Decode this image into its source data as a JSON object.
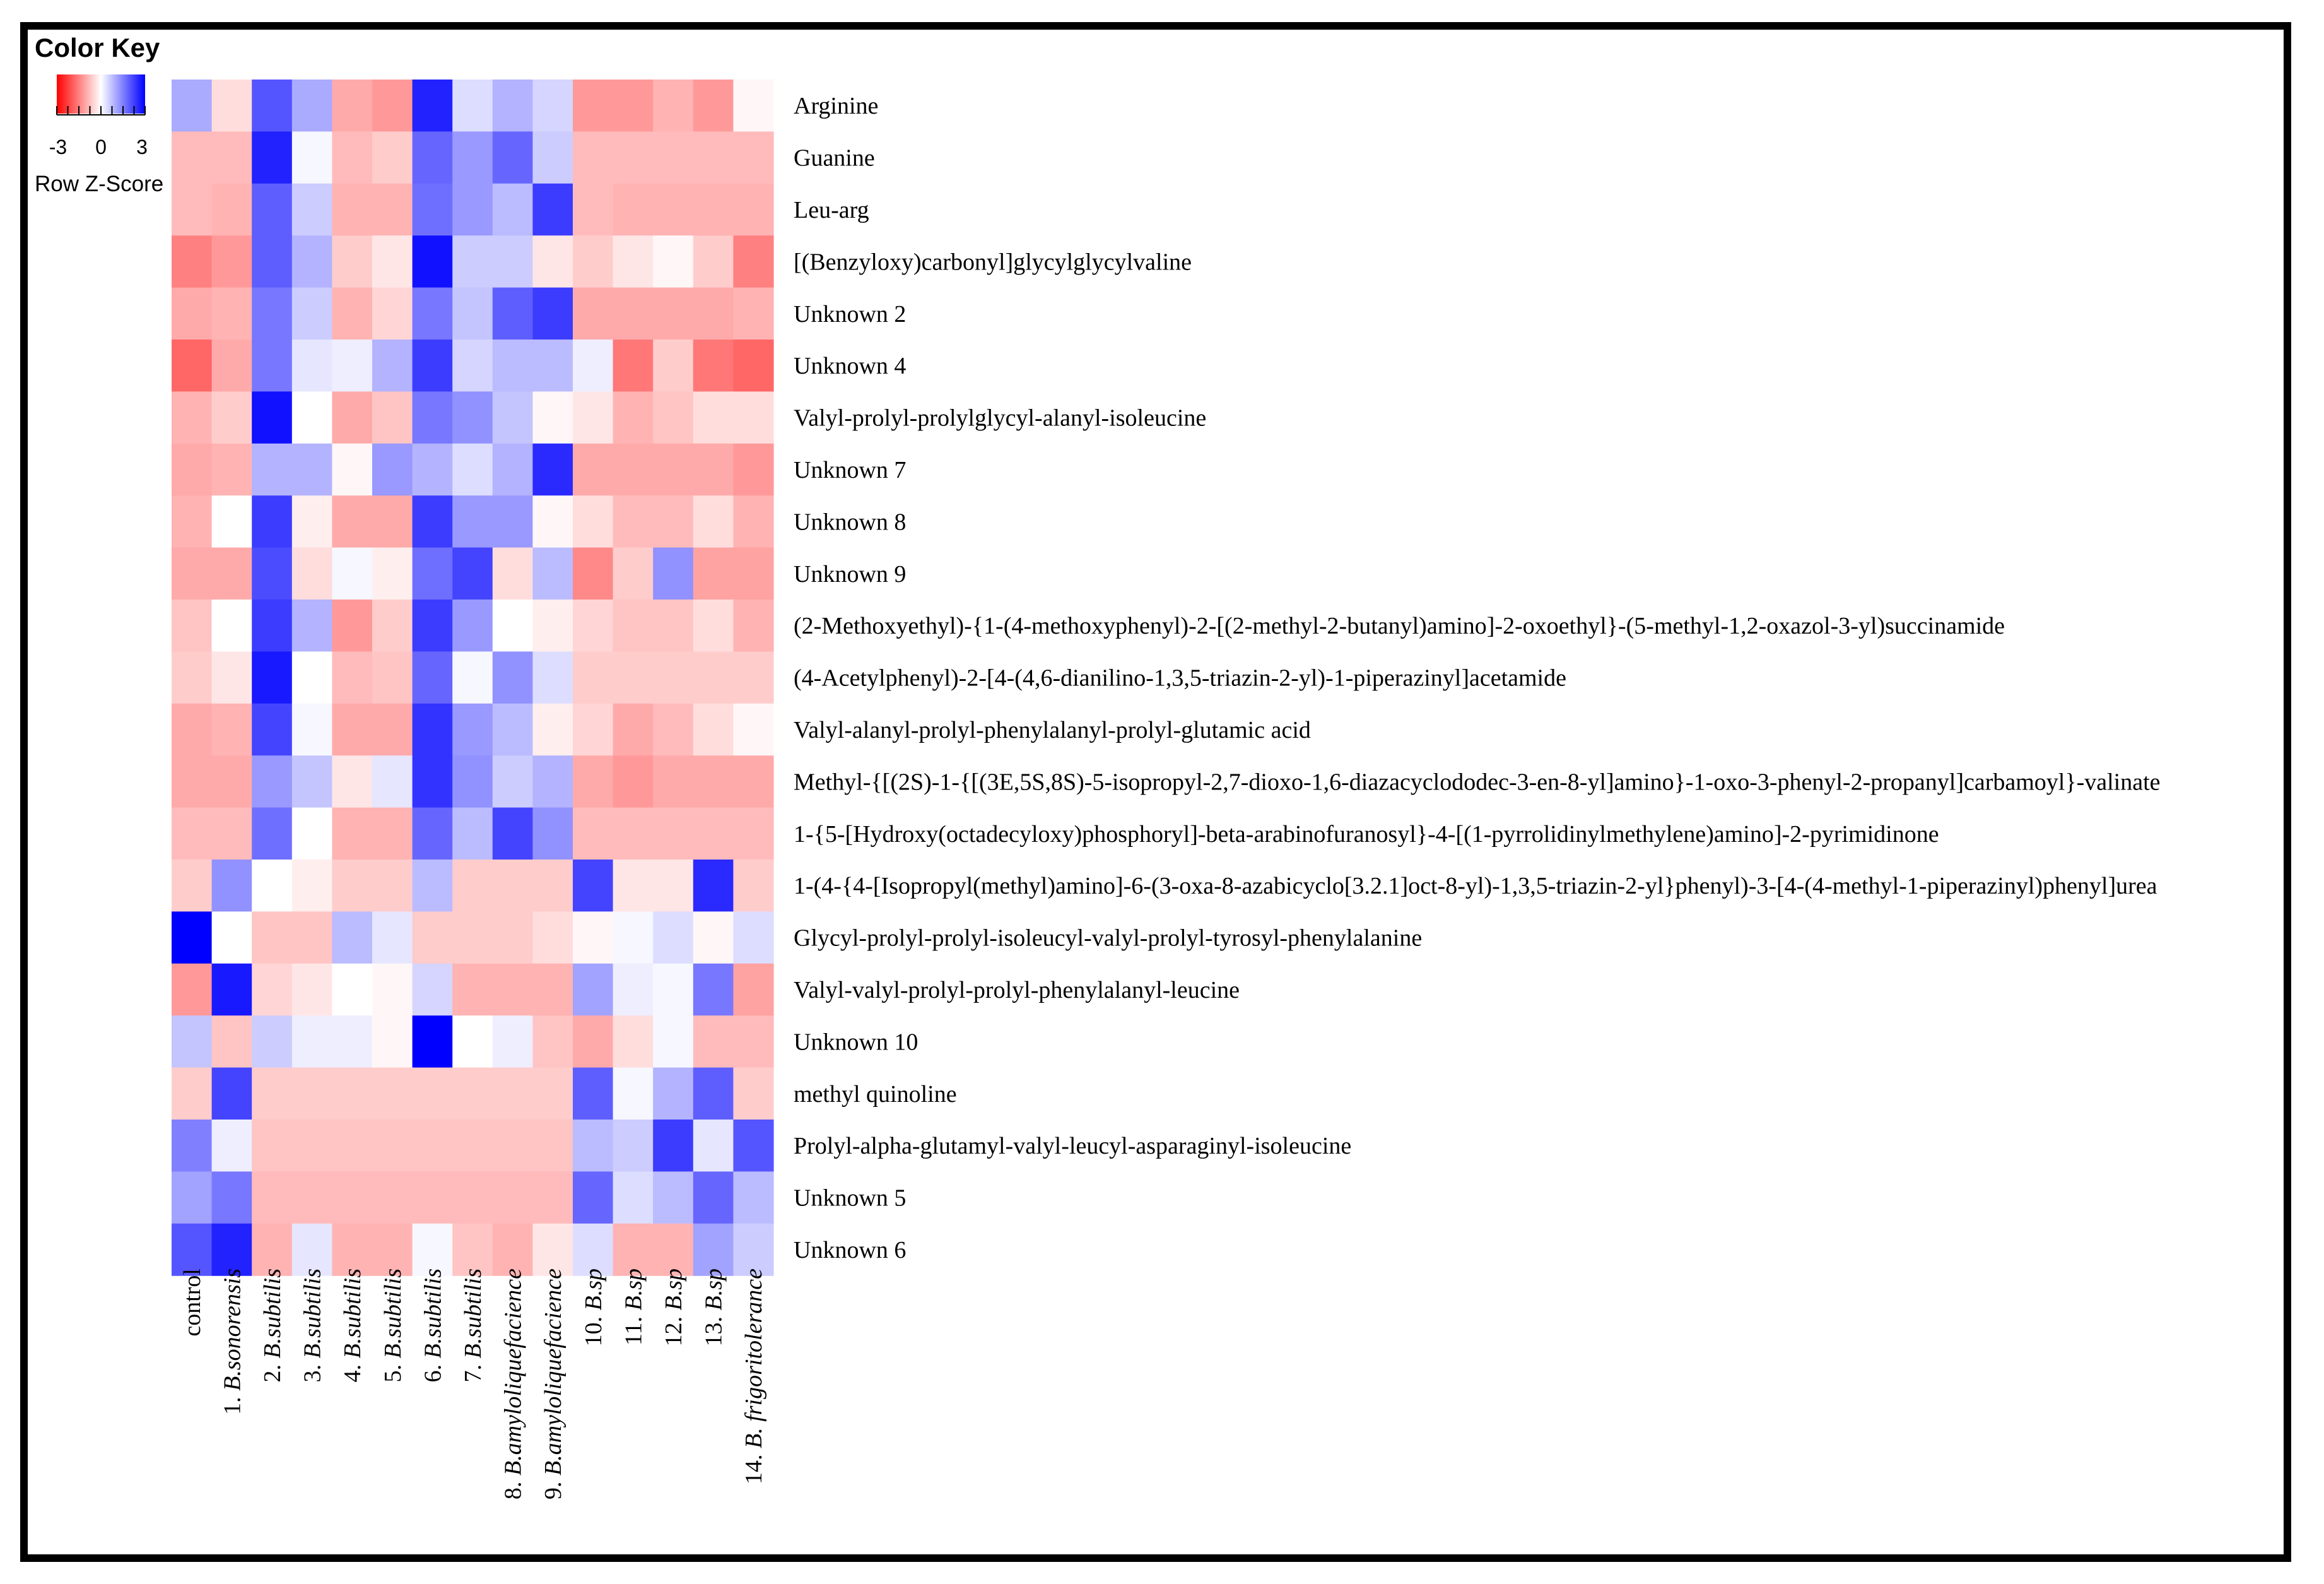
{
  "color_key": {
    "title": "Color Key",
    "ticks": [
      "-3",
      "0",
      "3"
    ],
    "label": "Row Z-Score",
    "low_color": "#ff0000",
    "mid_color": "#ffffff",
    "high_color": "#0000ff"
  },
  "chart_data": {
    "type": "heatmap",
    "title": "Color Key",
    "colorbar_label": "Row Z-Score",
    "color_range": [
      -3,
      3
    ],
    "columns": [
      {
        "num": "",
        "name": "control",
        "italic": false
      },
      {
        "num": "1.",
        "name": "B.sonorensis",
        "italic": true
      },
      {
        "num": "2.",
        "name": "B.subtilis",
        "italic": true
      },
      {
        "num": "3.",
        "name": "B.subtilis",
        "italic": true
      },
      {
        "num": "4.",
        "name": "B.subtilis",
        "italic": true
      },
      {
        "num": "5.",
        "name": "B.subtilis",
        "italic": true
      },
      {
        "num": "6.",
        "name": "B.subtilis",
        "italic": true
      },
      {
        "num": "7.",
        "name": "B.subtilis",
        "italic": true
      },
      {
        "num": "8.",
        "name": "B.amyloliquefacience",
        "italic": true
      },
      {
        "num": "9.",
        "name": "B.amyloliquefacience",
        "italic": true
      },
      {
        "num": "10.",
        "name": "B.sp",
        "italic": true
      },
      {
        "num": "11.",
        "name": "B.sp",
        "italic": true
      },
      {
        "num": "12.",
        "name": "B.sp",
        "italic": true
      },
      {
        "num": "13.",
        "name": "B.sp",
        "italic": true
      },
      {
        "num": "14.",
        "name": "B. frigoritolerance",
        "italic": true
      }
    ],
    "rows": [
      "Arginine",
      "Guanine",
      "Leu-arg",
      "[(Benzyloxy)carbonyl]glycylglycylvaline",
      "Unknown 2",
      "Unknown 4",
      "Valyl-prolyl-prolylglycyl-alanyl-isoleucine",
      "Unknown 7",
      "Unknown 8",
      "Unknown 9",
      "(2-Methoxyethyl)-{1-(4-methoxyphenyl)-2-[(2-methyl-2-butanyl)amino]-2-oxoethyl}-(5-methyl-1,2-oxazol-3-yl)succinamide",
      "(4-Acetylphenyl)-2-[4-(4,6-dianilino-1,3,5-triazin-2-yl)-1-piperazinyl]acetamide",
      "Valyl-alanyl-prolyl-phenylalanyl-prolyl-glutamic acid",
      "Methyl-{[(2S)-1-{[(3E,5S,8S)-5-isopropyl-2,7-dioxo-1,6-diazacyclododec-3-en-8-yl]amino}-1-oxo-3-phenyl-2-propanyl]carbamoyl}-valinate",
      "1-{5-[Hydroxy(octadecyloxy)phosphoryl]-beta-arabinofuranosyl}-4-[(1-pyrrolidinylmethylene)amino]-2-pyrimidinone",
      "1-(4-{4-[Isopropyl(methyl)amino]-6-(3-oxa-8-azabicyclo[3.2.1]oct-8-yl)-1,3,5-triazin-2-yl}phenyl)-3-[4-(4-methyl-1-piperazinyl)phenyl]urea",
      "Glycyl-prolyl-prolyl-isoleucyl-valyl-prolyl-tyrosyl-phenylalanine",
      "Valyl-valyl-prolyl-prolyl-phenylalanyl-leucine",
      "Unknown 10",
      "methyl quinoline",
      "Prolyl-alpha-glutamyl-valyl-leucyl-asparaginyl-isoleucine",
      "Unknown 5",
      "Unknown 6"
    ],
    "values": [
      [
        1.0,
        -0.4,
        2.0,
        1.0,
        -1.0,
        -1.2,
        2.6,
        0.4,
        0.9,
        0.5,
        -1.2,
        -1.2,
        -0.9,
        -1.2,
        -0.1
      ],
      [
        -0.8,
        -0.8,
        2.6,
        0.1,
        -0.8,
        -0.6,
        1.8,
        1.2,
        1.8,
        0.6,
        -0.8,
        -0.8,
        -0.8,
        -0.8,
        -0.8
      ],
      [
        -0.8,
        -0.9,
        1.9,
        0.6,
        -0.9,
        -0.9,
        1.7,
        1.2,
        0.8,
        2.3,
        -0.8,
        -0.9,
        -0.9,
        -0.9,
        -0.9
      ],
      [
        -1.5,
        -1.2,
        1.9,
        0.9,
        -0.6,
        -0.3,
        2.8,
        0.6,
        0.6,
        -0.3,
        -0.6,
        -0.3,
        -0.1,
        -0.6,
        -1.5
      ],
      [
        -1.0,
        -0.9,
        1.6,
        0.6,
        -0.9,
        -0.5,
        1.6,
        0.7,
        1.9,
        2.3,
        -1.0,
        -1.0,
        -1.0,
        -1.0,
        -0.9
      ],
      [
        -1.8,
        -1.0,
        1.6,
        0.3,
        0.2,
        0.9,
        2.3,
        0.5,
        0.8,
        0.8,
        0.2,
        -1.6,
        -0.6,
        -1.6,
        -1.8
      ],
      [
        -0.9,
        -0.6,
        2.8,
        0.0,
        -1.0,
        -0.7,
        1.6,
        1.3,
        0.7,
        -0.1,
        -0.3,
        -0.9,
        -0.7,
        -0.4,
        -0.4
      ],
      [
        -1.0,
        -0.9,
        0.9,
        0.9,
        -0.1,
        1.2,
        0.9,
        0.4,
        0.9,
        2.5,
        -1.0,
        -1.0,
        -1.0,
        -1.0,
        -1.2
      ],
      [
        -0.9,
        0.0,
        2.3,
        -0.2,
        -1.0,
        -1.0,
        2.3,
        1.2,
        1.2,
        -0.1,
        -0.4,
        -0.8,
        -0.8,
        -0.4,
        -0.9
      ],
      [
        -1.0,
        -1.0,
        2.1,
        -0.4,
        0.1,
        -0.2,
        1.7,
        2.2,
        -0.4,
        0.8,
        -1.4,
        -0.6,
        1.3,
        -1.1,
        -1.1
      ],
      [
        -0.7,
        0.0,
        2.3,
        0.9,
        -1.2,
        -0.6,
        2.3,
        1.2,
        0.0,
        -0.2,
        -0.5,
        -0.7,
        -0.7,
        -0.4,
        -0.9
      ],
      [
        -0.6,
        -0.3,
        2.7,
        0.0,
        -0.8,
        -0.7,
        1.8,
        0.1,
        1.3,
        0.4,
        -0.6,
        -0.6,
        -0.6,
        -0.6,
        -0.6
      ],
      [
        -1.0,
        -0.9,
        2.2,
        0.1,
        -1.0,
        -1.0,
        2.4,
        1.2,
        0.8,
        -0.2,
        -0.5,
        -1.0,
        -0.8,
        -0.4,
        -0.1
      ],
      [
        -1.0,
        -1.0,
        1.2,
        0.7,
        -0.3,
        0.3,
        2.4,
        1.3,
        0.6,
        0.9,
        -1.0,
        -1.2,
        -1.0,
        -1.0,
        -1.0
      ],
      [
        -0.8,
        -0.8,
        1.7,
        0.0,
        -0.9,
        -0.9,
        1.8,
        0.8,
        2.2,
        1.3,
        -0.8,
        -0.8,
        -0.8,
        -0.8,
        -0.8
      ],
      [
        -0.6,
        1.3,
        0.0,
        -0.2,
        -0.6,
        -0.6,
        0.8,
        -0.6,
        -0.6,
        -0.6,
        2.2,
        -0.3,
        -0.3,
        2.5,
        -0.6
      ],
      [
        3.0,
        0.0,
        -0.7,
        -0.7,
        0.8,
        0.3,
        -0.6,
        -0.6,
        -0.6,
        -0.4,
        -0.1,
        0.1,
        0.4,
        -0.1,
        0.4
      ],
      [
        -1.2,
        2.7,
        -0.5,
        -0.3,
        0.0,
        -0.1,
        0.5,
        -0.9,
        -0.9,
        -0.9,
        1.1,
        0.2,
        0.1,
        1.6,
        -1.1
      ],
      [
        0.7,
        -0.7,
        0.6,
        0.2,
        0.2,
        -0.1,
        3.0,
        0.0,
        0.2,
        -0.7,
        -1.0,
        -0.4,
        0.1,
        -0.8,
        -0.8
      ],
      [
        -0.6,
        2.2,
        -0.6,
        -0.6,
        -0.6,
        -0.6,
        -0.6,
        -0.6,
        -0.6,
        -0.6,
        1.9,
        0.1,
        0.9,
        1.9,
        -0.6
      ],
      [
        1.5,
        0.2,
        -0.7,
        -0.7,
        -0.7,
        -0.7,
        -0.7,
        -0.7,
        -0.7,
        -0.7,
        0.8,
        0.6,
        2.3,
        0.3,
        2.0
      ],
      [
        1.1,
        1.6,
        -0.8,
        -0.8,
        -0.8,
        -0.8,
        -0.8,
        -0.8,
        -0.8,
        -0.8,
        1.8,
        0.4,
        0.8,
        1.8,
        0.8
      ],
      [
        2.0,
        2.6,
        -0.9,
        0.3,
        -0.9,
        -0.9,
        0.1,
        -0.7,
        -0.9,
        -0.3,
        0.4,
        -0.9,
        -0.9,
        1.1,
        0.6
      ]
    ]
  }
}
